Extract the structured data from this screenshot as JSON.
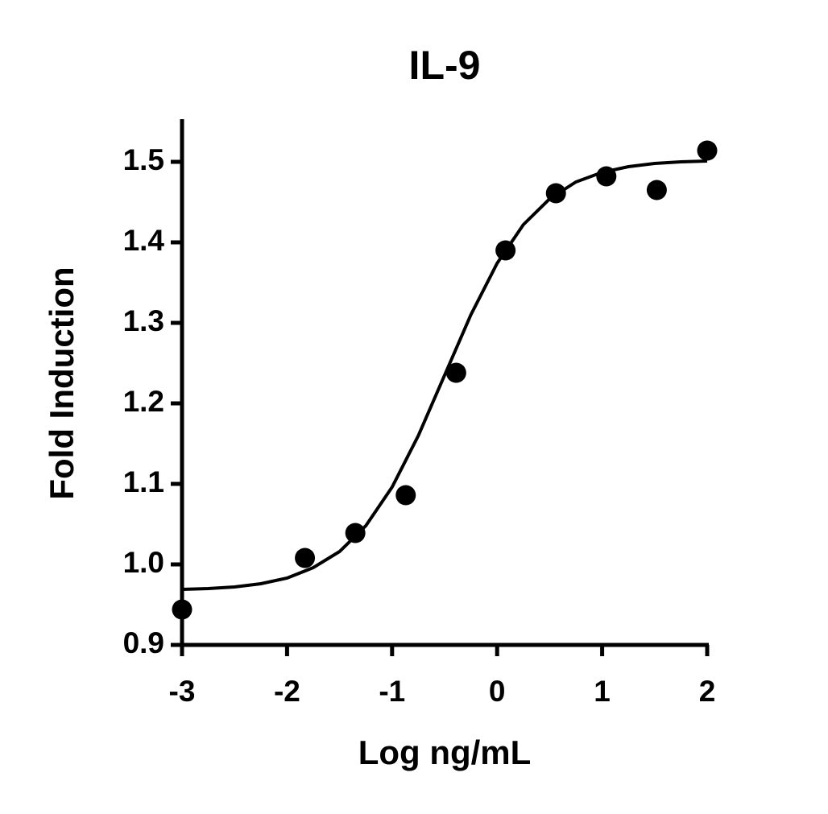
{
  "chart_data": {
    "type": "scatter",
    "title": "IL-9",
    "x_label": "Log ng/mL",
    "y_label": "Fold Induction",
    "xlim": [
      -3,
      2
    ],
    "xticks": [
      -3,
      -2,
      -1,
      0,
      1,
      2
    ],
    "ylim": [
      0.9,
      1.55
    ],
    "yticks": [
      0.9,
      {
        "value": 1.0,
        "label": "1.0"
      },
      1.1,
      1.2,
      1.3,
      1.4,
      1.5
    ],
    "grid": false,
    "series": [
      {
        "type": "scatter",
        "color": "#000000",
        "x": [
          -3,
          -1.83,
          -1.35,
          -0.87,
          -0.39,
          0.08,
          0.56,
          1.04,
          1.52,
          2
        ],
        "values": [
          0.944,
          1.008,
          1.039,
          1.086,
          1.238,
          1.39,
          1.461,
          1.482,
          1.465,
          1.514
        ]
      },
      {
        "type": "line",
        "color": "#000000",
        "x": [
          -3,
          -2.75,
          -2.5,
          -2.25,
          -2,
          -1.75,
          -1.5,
          -1.25,
          -1,
          -0.75,
          -0.5,
          -0.25,
          0,
          0.25,
          0.5,
          0.75,
          1,
          1.25,
          1.5,
          1.75,
          2
        ],
        "values": [
          0.969,
          0.97,
          0.972,
          0.976,
          0.983,
          0.996,
          1.016,
          1.048,
          1.096,
          1.16,
          1.235,
          1.31,
          1.374,
          1.422,
          1.454,
          1.475,
          1.487,
          1.494,
          1.498,
          1.5,
          1.501
        ]
      }
    ]
  }
}
